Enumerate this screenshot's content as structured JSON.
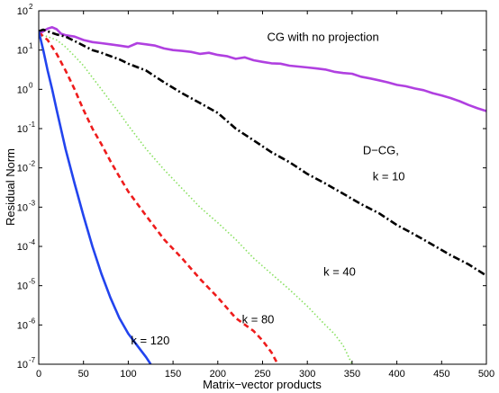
{
  "chart_data": {
    "type": "line",
    "title": "",
    "xlabel": "Matrix−vector products",
    "ylabel": "Residual Norm",
    "xlim": [
      0,
      500
    ],
    "ylim": [
      1e-07,
      100
    ],
    "yscale": "log",
    "grid": false,
    "xticks": [
      0,
      50,
      100,
      150,
      200,
      250,
      300,
      350,
      400,
      450,
      500
    ],
    "yticks": [
      {
        "exp": -7,
        "label": "10",
        "sup": "-7"
      },
      {
        "exp": -6,
        "label": "10",
        "sup": "-6"
      },
      {
        "exp": -5,
        "label": "10",
        "sup": "-5"
      },
      {
        "exp": -4,
        "label": "10",
        "sup": "-4"
      },
      {
        "exp": -3,
        "label": "10",
        "sup": "-3"
      },
      {
        "exp": -2,
        "label": "10",
        "sup": "-2"
      },
      {
        "exp": -1,
        "label": "10",
        "sup": "-1"
      },
      {
        "exp": 0,
        "label": "10",
        "sup": "0"
      },
      {
        "exp": 1,
        "label": "10",
        "sup": "1"
      },
      {
        "exp": 2,
        "label": "10",
        "sup": "2"
      }
    ],
    "series": [
      {
        "label": "CG with no projection",
        "color": "#b040e0",
        "style": "solid",
        "points": [
          [
            0,
            25
          ],
          [
            5,
            30
          ],
          [
            10,
            35
          ],
          [
            15,
            38
          ],
          [
            20,
            34
          ],
          [
            25,
            26
          ],
          [
            30,
            24
          ],
          [
            40,
            22
          ],
          [
            50,
            18
          ],
          [
            60,
            16
          ],
          [
            70,
            15
          ],
          [
            80,
            14
          ],
          [
            90,
            13
          ],
          [
            100,
            12
          ],
          [
            110,
            15
          ],
          [
            120,
            14
          ],
          [
            130,
            13
          ],
          [
            140,
            11
          ],
          [
            150,
            10
          ],
          [
            160,
            9.5
          ],
          [
            170,
            9
          ],
          [
            180,
            8
          ],
          [
            190,
            8.5
          ],
          [
            200,
            7.5
          ],
          [
            210,
            7
          ],
          [
            220,
            6
          ],
          [
            230,
            6.5
          ],
          [
            240,
            5.5
          ],
          [
            250,
            5
          ],
          [
            260,
            4.6
          ],
          [
            270,
            4.5
          ],
          [
            280,
            4
          ],
          [
            290,
            3.8
          ],
          [
            300,
            3.6
          ],
          [
            310,
            3.4
          ],
          [
            320,
            3.2
          ],
          [
            330,
            2.8
          ],
          [
            340,
            2.6
          ],
          [
            350,
            2.5
          ],
          [
            360,
            2.1
          ],
          [
            370,
            1.9
          ],
          [
            380,
            1.7
          ],
          [
            390,
            1.5
          ],
          [
            400,
            1.3
          ],
          [
            410,
            1.2
          ],
          [
            420,
            1.05
          ],
          [
            430,
            0.95
          ],
          [
            440,
            0.8
          ],
          [
            450,
            0.7
          ],
          [
            460,
            0.6
          ],
          [
            470,
            0.5
          ],
          [
            480,
            0.4
          ],
          [
            490,
            0.33
          ],
          [
            500,
            0.28
          ]
        ]
      },
      {
        "label": "D−CG, k = 10",
        "color": "#000000",
        "style": "dashdot",
        "points": [
          [
            0,
            30
          ],
          [
            5,
            33
          ],
          [
            10,
            30
          ],
          [
            20,
            25
          ],
          [
            30,
            22
          ],
          [
            40,
            17
          ],
          [
            50,
            13
          ],
          [
            60,
            10
          ],
          [
            70,
            8.5
          ],
          [
            80,
            7
          ],
          [
            90,
            5.8
          ],
          [
            100,
            4.5
          ],
          [
            120,
            3
          ],
          [
            140,
            1.5
          ],
          [
            160,
            0.8
          ],
          [
            180,
            0.45
          ],
          [
            200,
            0.25
          ],
          [
            220,
            0.1
          ],
          [
            240,
            0.05
          ],
          [
            260,
            0.025
          ],
          [
            280,
            0.014
          ],
          [
            300,
            0.007
          ],
          [
            320,
            0.004
          ],
          [
            340,
            0.0022
          ],
          [
            360,
            0.0012
          ],
          [
            380,
            0.0007
          ],
          [
            400,
            0.00035
          ],
          [
            420,
            0.0002
          ],
          [
            440,
            0.00011
          ],
          [
            460,
            6e-05
          ],
          [
            480,
            3.5e-05
          ],
          [
            500,
            1.8e-05
          ]
        ]
      },
      {
        "label": "k = 40",
        "color": "#88e060",
        "style": "dotted",
        "points": [
          [
            0,
            25
          ],
          [
            10,
            22
          ],
          [
            20,
            18
          ],
          [
            30,
            12
          ],
          [
            40,
            7
          ],
          [
            50,
            4
          ],
          [
            60,
            2
          ],
          [
            70,
            1
          ],
          [
            80,
            0.5
          ],
          [
            90,
            0.25
          ],
          [
            100,
            0.12
          ],
          [
            120,
            0.03
          ],
          [
            140,
            0.009
          ],
          [
            160,
            0.003
          ],
          [
            180,
            0.001
          ],
          [
            200,
            0.0004
          ],
          [
            220,
            0.00015
          ],
          [
            240,
            5e-05
          ],
          [
            260,
            2e-05
          ],
          [
            280,
            8e-06
          ],
          [
            300,
            3e-06
          ],
          [
            320,
            1e-06
          ],
          [
            330,
            6e-07
          ],
          [
            340,
            3e-07
          ],
          [
            350,
            1e-07
          ]
        ]
      },
      {
        "label": "k = 80",
        "color": "#ee1c1c",
        "style": "dashed",
        "points": [
          [
            0,
            28
          ],
          [
            10,
            18
          ],
          [
            20,
            8
          ],
          [
            30,
            3
          ],
          [
            40,
            1
          ],
          [
            50,
            0.3
          ],
          [
            60,
            0.1
          ],
          [
            70,
            0.04
          ],
          [
            80,
            0.015
          ],
          [
            90,
            0.006
          ],
          [
            100,
            0.0025
          ],
          [
            120,
            0.0006
          ],
          [
            140,
            0.00015
          ],
          [
            160,
            5e-05
          ],
          [
            180,
            1.5e-05
          ],
          [
            200,
            5e-06
          ],
          [
            220,
            1.5e-06
          ],
          [
            240,
            7e-07
          ],
          [
            250,
            4e-07
          ],
          [
            260,
            2e-07
          ],
          [
            267,
            1e-07
          ]
        ]
      },
      {
        "label": "k = 120",
        "color": "#2244ee",
        "style": "solid",
        "points": [
          [
            0,
            30
          ],
          [
            5,
            10
          ],
          [
            10,
            3
          ],
          [
            15,
            1
          ],
          [
            20,
            0.3
          ],
          [
            30,
            0.03
          ],
          [
            40,
            0.004
          ],
          [
            50,
            0.0006
          ],
          [
            60,
            0.0001
          ],
          [
            70,
            2e-05
          ],
          [
            80,
            5e-06
          ],
          [
            90,
            1.5e-06
          ],
          [
            100,
            6e-07
          ],
          [
            110,
            3e-07
          ],
          [
            120,
            1.5e-07
          ],
          [
            125,
            1e-07
          ]
        ]
      }
    ],
    "annotations": [
      {
        "id": "cg",
        "text": "CG with no projection",
        "x": 255,
        "y": 17
      },
      {
        "id": "dcg1",
        "text": "D−CG,",
        "x": 362,
        "y": 0.022
      },
      {
        "id": "dcg2",
        "text": "k = 10",
        "x": 373,
        "y": 0.0048
      },
      {
        "id": "k40",
        "text": "k = 40",
        "x": 318,
        "y": 1.8e-05
      },
      {
        "id": "k80",
        "text": "k = 80",
        "x": 227,
        "y": 1.1e-06
      },
      {
        "id": "k120",
        "text": "k = 120",
        "x": 103,
        "y": 3.2e-07
      }
    ]
  }
}
